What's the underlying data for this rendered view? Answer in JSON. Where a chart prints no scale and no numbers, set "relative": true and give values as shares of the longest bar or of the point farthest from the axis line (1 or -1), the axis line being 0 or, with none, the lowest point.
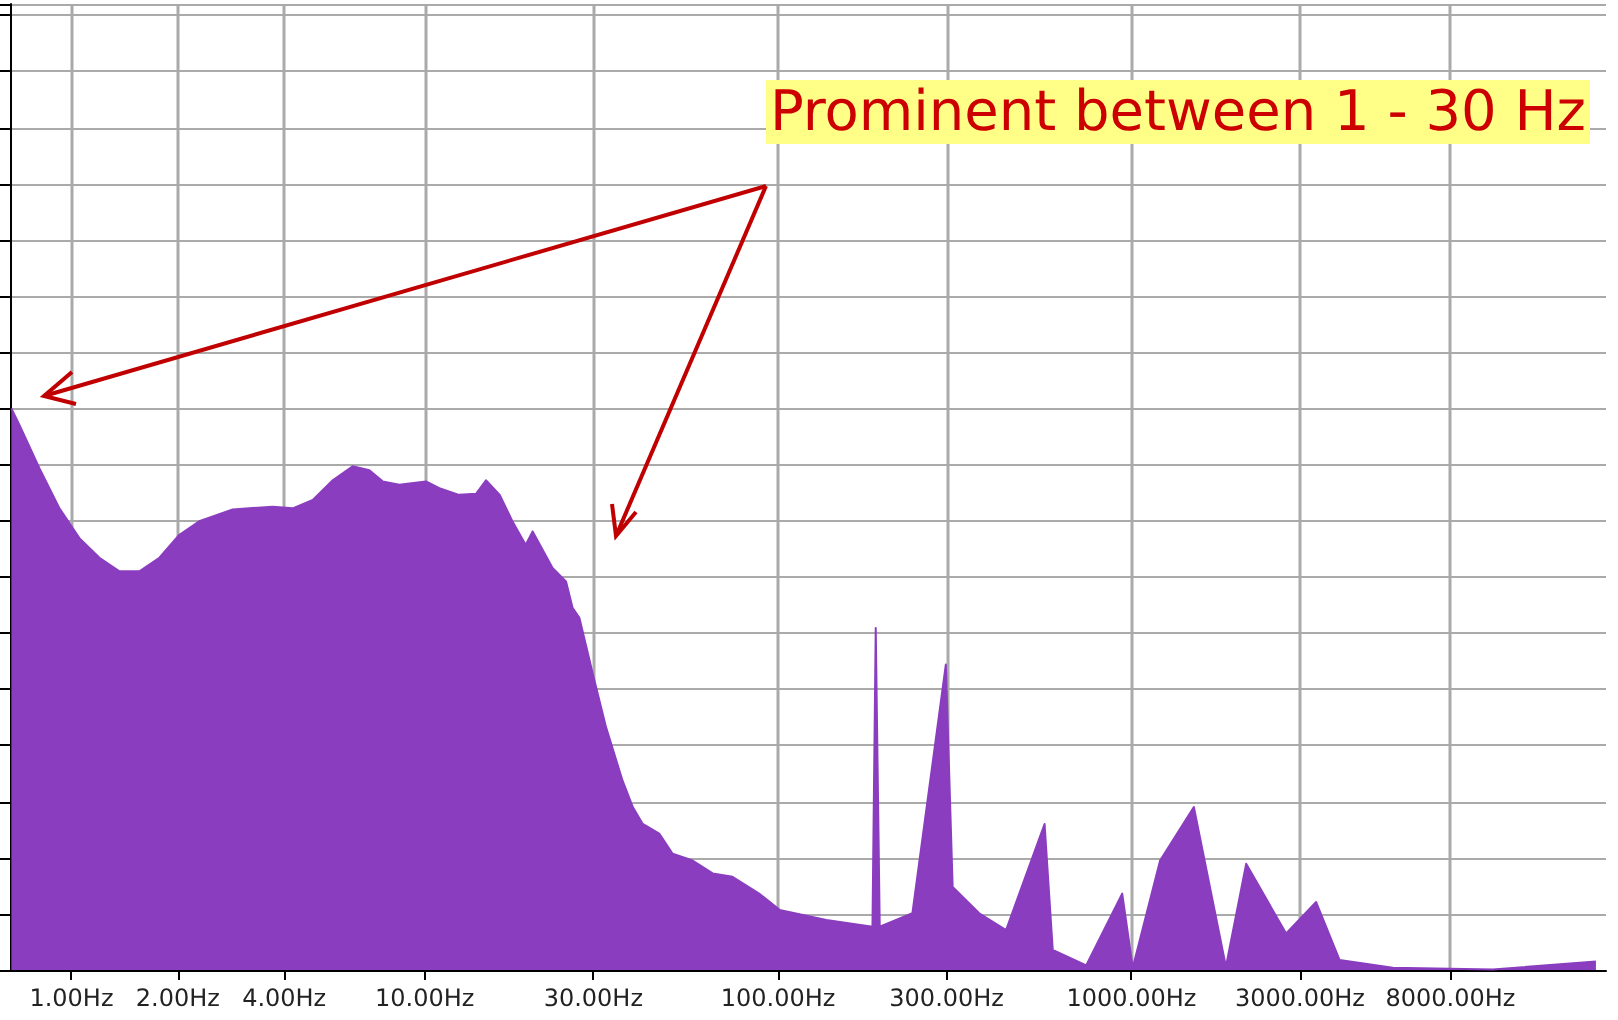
{
  "chart_data": {
    "type": "area",
    "relative": true,
    "log": "x",
    "color": "#8a3dbf",
    "grid": true,
    "annotations": [
      "Prominent between 1 - 30 Hz"
    ],
    "xlim": [
      0.67,
      22050
    ],
    "xticks": [
      {
        "value": 1,
        "label": "1.00Hz"
      },
      {
        "value": 2,
        "label": "2.00Hz"
      },
      {
        "value": 4,
        "label": "4.00Hz"
      },
      {
        "value": 10,
        "label": "10.00Hz"
      },
      {
        "value": 30,
        "label": "30.00Hz"
      },
      {
        "value": 100,
        "label": "100.00Hz"
      },
      {
        "value": 300,
        "label": "300.00Hz"
      },
      {
        "value": 1000,
        "label": "1000.00Hz"
      },
      {
        "value": 3000,
        "label": "3000.00Hz"
      },
      {
        "value": 8000,
        "label": "8000.00Hz"
      }
    ],
    "x": [
      0.676,
      0.713,
      0.812,
      0.925,
      1.053,
      1.2,
      1.367,
      1.557,
      1.774,
      2.021,
      2.3,
      2.86,
      3.71,
      4.23,
      4.82,
      5.49,
      6.25,
      6.97,
      7.6,
      8.47,
      10.08,
      11.0,
      12.5,
      13.97,
      14.9,
      16.3,
      17.7,
      19.3,
      20.2,
      23.0,
      25.1,
      26.2,
      27.4,
      29.9,
      32.6,
      36.3,
      38.8,
      41.4,
      46.1,
      50.3,
      57.3,
      65.3,
      74.3,
      88.4,
      101,
      137,
      185,
      189,
      194,
      240,
      298.5,
      312,
      371,
      442,
      568,
      599,
      745,
      942,
      1009,
      1206,
      1503,
      1852,
      2113,
      2742,
      3334,
      3883,
      5495,
      10540,
      20650
    ],
    "values": [
      1.0,
      0.97,
      0.893,
      0.822,
      0.769,
      0.734,
      0.71,
      0.71,
      0.734,
      0.775,
      0.799,
      0.82,
      0.825,
      0.822,
      0.837,
      0.872,
      0.897,
      0.89,
      0.87,
      0.864,
      0.87,
      0.858,
      0.846,
      0.848,
      0.872,
      0.846,
      0.799,
      0.757,
      0.781,
      0.716,
      0.692,
      0.645,
      0.627,
      0.527,
      0.432,
      0.337,
      0.29,
      0.26,
      0.243,
      0.207,
      0.195,
      0.172,
      0.166,
      0.136,
      0.107,
      0.089,
      0.077,
      0.609,
      0.077,
      0.101,
      0.544,
      0.148,
      0.101,
      0.071,
      0.26,
      0.036,
      0.008,
      0.136,
      0.004,
      0.195,
      0.29,
      0.006,
      0.189,
      0.065,
      0.121,
      0.018,
      0.004,
      0.001,
      0.015
    ]
  }
}
